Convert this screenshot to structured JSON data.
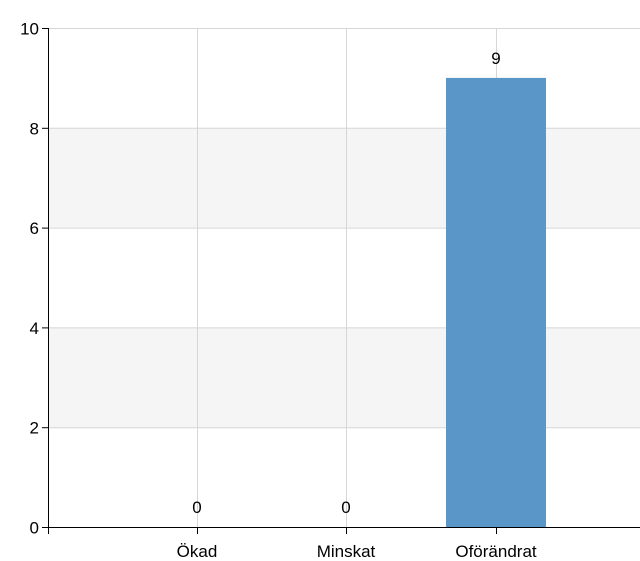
{
  "chart_data": {
    "type": "bar",
    "categories": [
      "Ökad",
      "Minskat",
      "Oförändrat"
    ],
    "values": [
      0,
      0,
      9
    ],
    "value_labels": [
      "0",
      "0",
      "9"
    ],
    "ylim": [
      0,
      10
    ],
    "yticks": [
      "0",
      "2",
      "4",
      "6",
      "8",
      "10"
    ],
    "grid": true,
    "banded_background": true,
    "colors": {
      "bar": "#5b96c8",
      "band": "#f5f5f5",
      "grid": "#d6d6d6",
      "axis": "#000000"
    }
  }
}
